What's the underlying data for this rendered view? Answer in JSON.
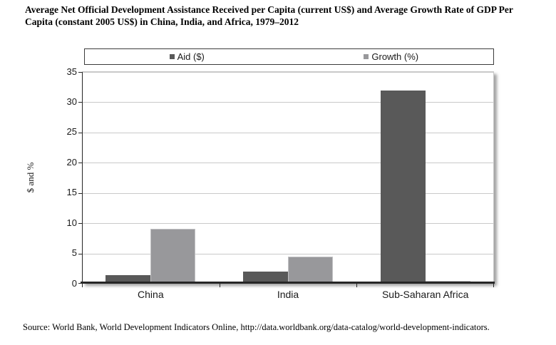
{
  "title": "Average Net Official Development Assistance Received per Capita (current US$) and Average Growth Rate of GDP Per Capita (constant 2005 US$) in China, India, and Africa, 1979–2012",
  "source": "Source: World Bank, World Development Indicators Online, http://data.worldbank.org/data-catalog/world-development-indicators.",
  "chart_data": {
    "type": "bar",
    "categories": [
      "China",
      "India",
      "Sub-Saharan Africa"
    ],
    "series": [
      {
        "name": "Aid ($)",
        "color": "#595959",
        "values": [
          1.3,
          1.9,
          31.8
        ]
      },
      {
        "name": "Growth (%)",
        "color": "#98989b",
        "values": [
          9.0,
          4.4,
          0.3
        ]
      }
    ],
    "title": "Average Net Official Development Assistance Received per Capita (current US$) and Average Growth Rate of GDP Per Capita (constant 2005 US$) in China, India, and Africa, 1979–2012",
    "xlabel": "",
    "ylabel": "$ and %",
    "ylim": [
      0,
      35
    ],
    "yticks": [
      0,
      5,
      10,
      15,
      20,
      25,
      30,
      35
    ],
    "grid": true,
    "legend_position": "top"
  },
  "colors": {
    "aid_bar": "#595959",
    "growth_bar": "#98989b",
    "gridline": "#c9c9c9",
    "axis": "#262626",
    "legend_border": "#3c3c3c",
    "background": "#ffffff"
  }
}
